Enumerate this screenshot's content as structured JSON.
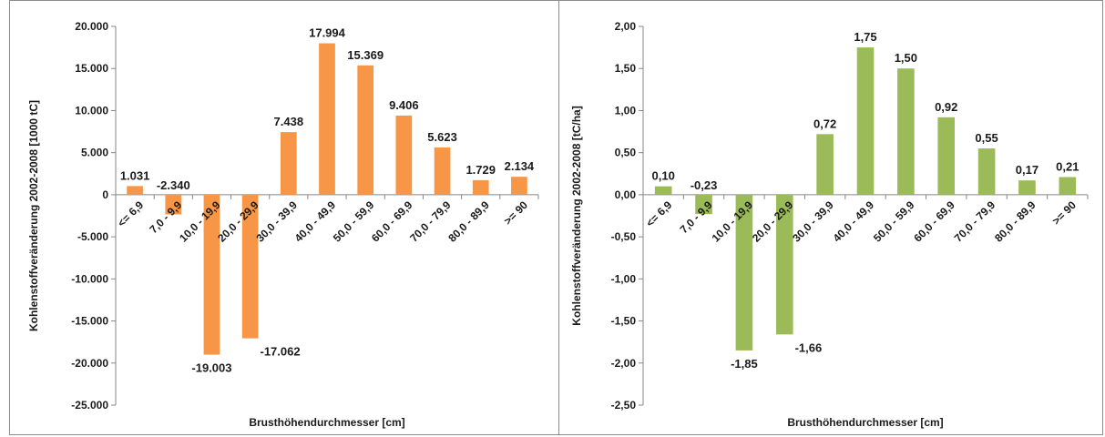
{
  "chart_data": [
    {
      "type": "bar",
      "xlabel": "Brusthöhendurchmesser [cm]",
      "ylabel": "Kohlenstoffveränderung 2002-2008 [1000 tC]",
      "categories": [
        "<= 6,9",
        "7,0 - 9,9",
        "10,0 - 19,9",
        "20,0 - 29,9",
        "30,0 - 39,9",
        "40,0 - 49,9",
        "50,0 - 59,9",
        "60,0 - 69,9",
        "70,0 - 79,9",
        "80,0 - 89,9",
        ">= 90"
      ],
      "values": [
        1031,
        -2340,
        -19003,
        -17062,
        7438,
        17994,
        15369,
        9406,
        5623,
        1729,
        2134
      ],
      "value_labels": [
        "1.031",
        "-2.340",
        "-19.003",
        "-17.062",
        "7.438",
        "17.994",
        "15.369",
        "9.406",
        "5.623",
        "1.729",
        "2.134"
      ],
      "ylim": [
        -25000,
        20000
      ],
      "yticks": [
        -25000,
        -20000,
        -15000,
        -10000,
        -5000,
        0,
        5000,
        10000,
        15000,
        20000
      ],
      "ytick_labels": [
        "-25.000",
        "-20.000",
        "-15.000",
        "-10.000",
        "-5.000",
        "0",
        "5.000",
        "10.000",
        "15.000",
        "20.000"
      ],
      "color": "#F79646",
      "grid": false,
      "legend": "none"
    },
    {
      "type": "bar",
      "xlabel": "Brusthöhendurchmesser [cm]",
      "ylabel": "Kohlenstoffveränderung 2002-2008 [tC/ha]",
      "categories": [
        "<= 6,9",
        "7,0 - 9,9",
        "10,0 - 19,9",
        "20,0 - 29,9",
        "30,0 - 39,9",
        "40,0 - 49,9",
        "50,0 - 59,9",
        "60,0 - 69,9",
        "70,0 - 79,9",
        "80,0 - 89,9",
        ">= 90"
      ],
      "values": [
        0.1,
        -0.23,
        -1.85,
        -1.66,
        0.72,
        1.75,
        1.5,
        0.92,
        0.55,
        0.17,
        0.21
      ],
      "value_labels": [
        "0,10",
        "-0,23",
        "-1,85",
        "-1,66",
        "0,72",
        "1,75",
        "1,50",
        "0,92",
        "0,55",
        "0,17",
        "0,21"
      ],
      "ylim": [
        -2.5,
        2.0
      ],
      "yticks": [
        -2.5,
        -2.0,
        -1.5,
        -1.0,
        -0.5,
        0,
        0.5,
        1.0,
        1.5,
        2.0
      ],
      "ytick_labels": [
        "-2,50",
        "-2,00",
        "-1,50",
        "-1,00",
        "-0,50",
        "0,00",
        "0,50",
        "1,00",
        "1,50",
        "2,00"
      ],
      "color": "#9BBB59",
      "grid": false,
      "legend": "none"
    }
  ]
}
